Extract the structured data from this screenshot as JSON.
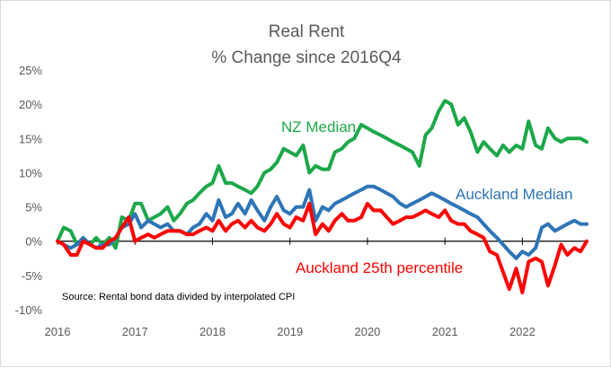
{
  "chart_data": {
    "type": "line",
    "title": "Real Rent",
    "subtitle": "% Change since 2016Q4",
    "xlabel": "",
    "ylabel": "",
    "x_tick_labels": [
      "2016",
      "2017",
      "2018",
      "2019",
      "2020",
      "2021",
      "2022"
    ],
    "y_tick_labels": [
      "25%",
      "20%",
      "15%",
      "10%",
      "5%",
      "0%",
      "-5%",
      "-10%"
    ],
    "ylim": [
      -10,
      25
    ],
    "xlim": [
      2016.0,
      2022.83
    ],
    "y_ticks": [
      25,
      20,
      15,
      10,
      5,
      0,
      -5,
      -10
    ],
    "x_ticks": [
      2016,
      2017,
      2018,
      2019,
      2020,
      2021,
      2022
    ],
    "grid": false,
    "legend": "inline labels",
    "source_note": "Source: Rental bond data divided by interpolated CPI",
    "series": [
      {
        "name": "NZ Median",
        "color": "#1ca84a",
        "x": [
          2016.0,
          2016.08,
          2016.17,
          2016.25,
          2016.33,
          2016.42,
          2016.5,
          2016.58,
          2016.67,
          2016.75,
          2016.83,
          2016.92,
          2017.0,
          2017.08,
          2017.17,
          2017.25,
          2017.33,
          2017.42,
          2017.5,
          2017.58,
          2017.67,
          2017.75,
          2017.83,
          2017.92,
          2018.0,
          2018.08,
          2018.17,
          2018.25,
          2018.33,
          2018.42,
          2018.5,
          2018.58,
          2018.67,
          2018.75,
          2018.83,
          2018.92,
          2019.0,
          2019.08,
          2019.17,
          2019.25,
          2019.33,
          2019.42,
          2019.5,
          2019.58,
          2019.67,
          2019.75,
          2019.83,
          2019.92,
          2020.0,
          2020.08,
          2020.17,
          2020.25,
          2020.33,
          2020.42,
          2020.5,
          2020.58,
          2020.67,
          2020.75,
          2020.83,
          2020.92,
          2021.0,
          2021.08,
          2021.17,
          2021.25,
          2021.33,
          2021.42,
          2021.5,
          2021.58,
          2021.67,
          2021.75,
          2021.83,
          2021.92,
          2022.0,
          2022.08,
          2022.17,
          2022.25,
          2022.33,
          2022.42,
          2022.5,
          2022.58,
          2022.67,
          2022.75,
          2022.83
        ],
        "values": [
          0.0,
          2.0,
          1.5,
          -0.5,
          0.0,
          -0.5,
          0.5,
          -0.5,
          0.5,
          -1.0,
          3.5,
          3.0,
          5.5,
          5.5,
          3.0,
          3.5,
          4.0,
          5.0,
          3.0,
          4.0,
          5.5,
          6.0,
          7.0,
          8.0,
          8.5,
          11.0,
          8.5,
          8.5,
          8.0,
          7.5,
          7.0,
          8.0,
          10.0,
          10.5,
          11.5,
          13.5,
          13.0,
          12.5,
          14.0,
          10.0,
          11.0,
          10.5,
          10.5,
          13.0,
          13.5,
          14.5,
          15.0,
          17.0,
          16.5,
          16.0,
          15.5,
          15.0,
          14.5,
          14.0,
          13.5,
          13.0,
          11.0,
          15.5,
          16.5,
          19.0,
          20.5,
          20.0,
          17.0,
          18.0,
          16.0,
          13.0,
          14.5,
          13.5,
          12.5,
          14.0,
          13.0,
          14.0,
          13.5,
          17.5,
          14.0,
          13.5,
          16.5,
          15.0,
          14.5,
          15.0,
          15.0,
          15.0,
          14.5
        ]
      },
      {
        "name": "Auckland Median",
        "color": "#2e75b6",
        "x": [
          2016.0,
          2016.08,
          2016.17,
          2016.25,
          2016.33,
          2016.42,
          2016.5,
          2016.58,
          2016.67,
          2016.75,
          2016.83,
          2016.92,
          2017.0,
          2017.08,
          2017.17,
          2017.25,
          2017.33,
          2017.42,
          2017.5,
          2017.58,
          2017.67,
          2017.75,
          2017.83,
          2017.92,
          2018.0,
          2018.08,
          2018.17,
          2018.25,
          2018.33,
          2018.42,
          2018.5,
          2018.58,
          2018.67,
          2018.75,
          2018.83,
          2018.92,
          2019.0,
          2019.08,
          2019.17,
          2019.25,
          2019.33,
          2019.42,
          2019.5,
          2019.58,
          2019.67,
          2019.75,
          2019.83,
          2019.92,
          2020.0,
          2020.08,
          2020.17,
          2020.25,
          2020.33,
          2020.42,
          2020.5,
          2020.58,
          2020.67,
          2020.75,
          2020.83,
          2020.92,
          2021.0,
          2021.08,
          2021.17,
          2021.25,
          2021.33,
          2021.42,
          2021.5,
          2021.58,
          2021.67,
          2021.75,
          2021.83,
          2021.92,
          2022.0,
          2022.08,
          2022.17,
          2022.25,
          2022.33,
          2022.42,
          2022.5,
          2022.58,
          2022.67,
          2022.75,
          2022.83
        ],
        "values": [
          0.0,
          -0.5,
          -1.0,
          -0.5,
          0.5,
          -0.5,
          -1.0,
          -0.5,
          -0.5,
          0.5,
          2.0,
          2.5,
          4.0,
          2.0,
          3.0,
          2.5,
          2.0,
          2.5,
          1.5,
          1.5,
          1.0,
          2.0,
          2.5,
          4.0,
          3.0,
          6.0,
          3.5,
          4.0,
          5.5,
          4.0,
          6.0,
          4.5,
          3.0,
          5.0,
          6.5,
          4.5,
          4.0,
          5.0,
          5.0,
          7.5,
          3.0,
          5.0,
          4.5,
          5.5,
          6.0,
          6.5,
          7.0,
          7.5,
          8.0,
          8.0,
          7.5,
          7.0,
          6.5,
          5.5,
          5.0,
          5.5,
          6.0,
          6.5,
          7.0,
          6.5,
          6.0,
          5.5,
          5.0,
          4.5,
          4.0,
          3.5,
          2.5,
          1.5,
          0.5,
          -0.5,
          -1.5,
          -2.5,
          -1.5,
          -2.0,
          -1.0,
          2.0,
          2.5,
          1.5,
          2.0,
          2.5,
          3.0,
          2.5,
          2.5
        ]
      },
      {
        "name": "Auckland 25th percentile",
        "color": "#ff0000",
        "x": [
          2016.0,
          2016.08,
          2016.17,
          2016.25,
          2016.33,
          2016.42,
          2016.5,
          2016.58,
          2016.67,
          2016.75,
          2016.83,
          2016.92,
          2017.0,
          2017.08,
          2017.17,
          2017.25,
          2017.33,
          2017.42,
          2017.5,
          2017.58,
          2017.67,
          2017.75,
          2017.83,
          2017.92,
          2018.0,
          2018.08,
          2018.17,
          2018.25,
          2018.33,
          2018.42,
          2018.5,
          2018.58,
          2018.67,
          2018.75,
          2018.83,
          2018.92,
          2019.0,
          2019.08,
          2019.17,
          2019.25,
          2019.33,
          2019.42,
          2019.5,
          2019.58,
          2019.67,
          2019.75,
          2019.83,
          2019.92,
          2020.0,
          2020.08,
          2020.17,
          2020.25,
          2020.33,
          2020.42,
          2020.5,
          2020.58,
          2020.67,
          2020.75,
          2020.83,
          2020.92,
          2021.0,
          2021.08,
          2021.17,
          2021.25,
          2021.33,
          2021.42,
          2021.5,
          2021.58,
          2021.67,
          2021.75,
          2021.83,
          2021.92,
          2022.0,
          2022.08,
          2022.17,
          2022.25,
          2022.33,
          2022.42,
          2022.5,
          2022.58,
          2022.67,
          2022.75,
          2022.83
        ],
        "values": [
          0.0,
          -0.5,
          -2.0,
          -2.0,
          0.0,
          -0.5,
          -1.0,
          -1.0,
          0.0,
          0.5,
          2.0,
          3.5,
          0.0,
          0.5,
          1.0,
          0.5,
          1.0,
          1.5,
          1.5,
          1.5,
          1.0,
          1.0,
          1.5,
          2.0,
          1.5,
          3.0,
          1.5,
          2.5,
          3.0,
          2.0,
          3.0,
          2.0,
          1.5,
          2.5,
          4.0,
          2.5,
          2.0,
          3.5,
          3.0,
          5.5,
          1.0,
          2.5,
          1.5,
          3.0,
          4.0,
          3.0,
          3.0,
          3.5,
          5.5,
          4.5,
          4.5,
          3.5,
          2.5,
          3.0,
          3.5,
          3.5,
          4.0,
          4.5,
          4.0,
          3.5,
          4.5,
          3.0,
          2.5,
          2.5,
          1.5,
          1.0,
          0.5,
          -1.5,
          -2.0,
          -4.5,
          -7.0,
          -4.0,
          -7.5,
          -3.0,
          -2.5,
          -3.0,
          -6.5,
          -3.5,
          -0.5,
          -2.0,
          -1.0,
          -1.5,
          0.0
        ]
      }
    ]
  }
}
